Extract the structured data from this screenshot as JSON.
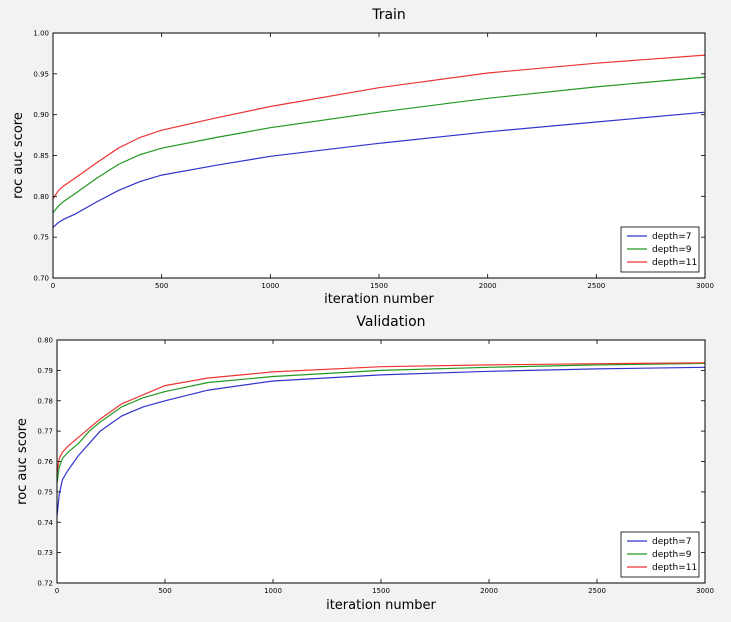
{
  "chart_data": [
    {
      "type": "line",
      "title": "Train",
      "xlabel": "iteration number",
      "ylabel": "roc auc score",
      "xlim": [
        0,
        3000
      ],
      "ylim": [
        0.7,
        1.0
      ],
      "xticks": [
        0,
        500,
        1000,
        1500,
        2000,
        2500,
        3000
      ],
      "yticks": [
        0.7,
        0.75,
        0.8,
        0.85,
        0.9,
        0.95,
        1.0
      ],
      "x_tick_labels": [
        "0",
        "500",
        "1000",
        "1500",
        "2000",
        "2500",
        "3000"
      ],
      "y_tick_labels": [
        "0.70",
        "0.75",
        "0.80",
        "0.85",
        "0.90",
        "0.95",
        "1.00"
      ],
      "grid": false,
      "legend_position": "bottom-right",
      "series": [
        {
          "name": "depth=7",
          "color": "#3333cc",
          "x": [
            0,
            25,
            50,
            100,
            200,
            300,
            400,
            500,
            750,
            1000,
            1500,
            2000,
            2500,
            3000
          ],
          "y": [
            0.762,
            0.768,
            0.772,
            0.778,
            0.793,
            0.807,
            0.818,
            0.826,
            0.838,
            0.849,
            0.865,
            0.879,
            0.891,
            0.903
          ]
        },
        {
          "name": "depth=9",
          "color": "#229922",
          "x": [
            0,
            25,
            50,
            100,
            200,
            300,
            400,
            500,
            750,
            1000,
            1500,
            2000,
            2500,
            3000
          ],
          "y": [
            0.78,
            0.788,
            0.794,
            0.803,
            0.822,
            0.839,
            0.851,
            0.859,
            0.872,
            0.884,
            0.903,
            0.92,
            0.934,
            0.946
          ]
        },
        {
          "name": "depth=11",
          "color": "#ee3333",
          "x": [
            0,
            25,
            50,
            100,
            200,
            300,
            400,
            500,
            750,
            1000,
            1500,
            2000,
            2500,
            3000
          ],
          "y": [
            0.797,
            0.807,
            0.813,
            0.822,
            0.841,
            0.859,
            0.872,
            0.881,
            0.896,
            0.91,
            0.933,
            0.951,
            0.963,
            0.973
          ]
        }
      ]
    },
    {
      "type": "line",
      "title": "Validation",
      "xlabel": "iteration number",
      "ylabel": "roc auc score",
      "xlim": [
        0,
        3000
      ],
      "ylim": [
        0.72,
        0.8
      ],
      "xticks": [
        0,
        500,
        1000,
        1500,
        2000,
        2500,
        3000
      ],
      "yticks": [
        0.72,
        0.73,
        0.74,
        0.75,
        0.76,
        0.77,
        0.78,
        0.79,
        0.8
      ],
      "x_tick_labels": [
        "0",
        "500",
        "1000",
        "1500",
        "2000",
        "2500",
        "3000"
      ],
      "y_tick_labels": [
        "0.72",
        "0.73",
        "0.74",
        "0.75",
        "0.76",
        "0.77",
        "0.78",
        "0.79",
        "0.80"
      ],
      "grid": false,
      "legend_position": "bottom-right",
      "series": [
        {
          "name": "depth=7",
          "color": "#3333cc",
          "x": [
            0,
            10,
            25,
            50,
            100,
            150,
            200,
            300,
            400,
            500,
            700,
            1000,
            1500,
            2000,
            2500,
            3000
          ],
          "y": [
            0.742,
            0.749,
            0.754,
            0.757,
            0.762,
            0.766,
            0.77,
            0.775,
            0.778,
            0.78,
            0.7835,
            0.7865,
            0.7885,
            0.7897,
            0.7905,
            0.791
          ]
        },
        {
          "name": "depth=9",
          "color": "#229922",
          "x": [
            0,
            10,
            25,
            50,
            100,
            150,
            200,
            300,
            400,
            500,
            700,
            1000,
            1500,
            2000,
            2500,
            3000
          ],
          "y": [
            0.753,
            0.758,
            0.761,
            0.763,
            0.766,
            0.77,
            0.773,
            0.778,
            0.781,
            0.783,
            0.786,
            0.788,
            0.79,
            0.791,
            0.7918,
            0.7923
          ]
        },
        {
          "name": "depth=11",
          "color": "#ee3333",
          "x": [
            0,
            10,
            25,
            50,
            100,
            150,
            200,
            300,
            400,
            500,
            700,
            1000,
            1500,
            2000,
            2500,
            3000
          ],
          "y": [
            0.756,
            0.761,
            0.763,
            0.765,
            0.768,
            0.771,
            0.774,
            0.779,
            0.782,
            0.785,
            0.7875,
            0.7895,
            0.7912,
            0.7918,
            0.7922,
            0.7925
          ]
        }
      ]
    }
  ]
}
